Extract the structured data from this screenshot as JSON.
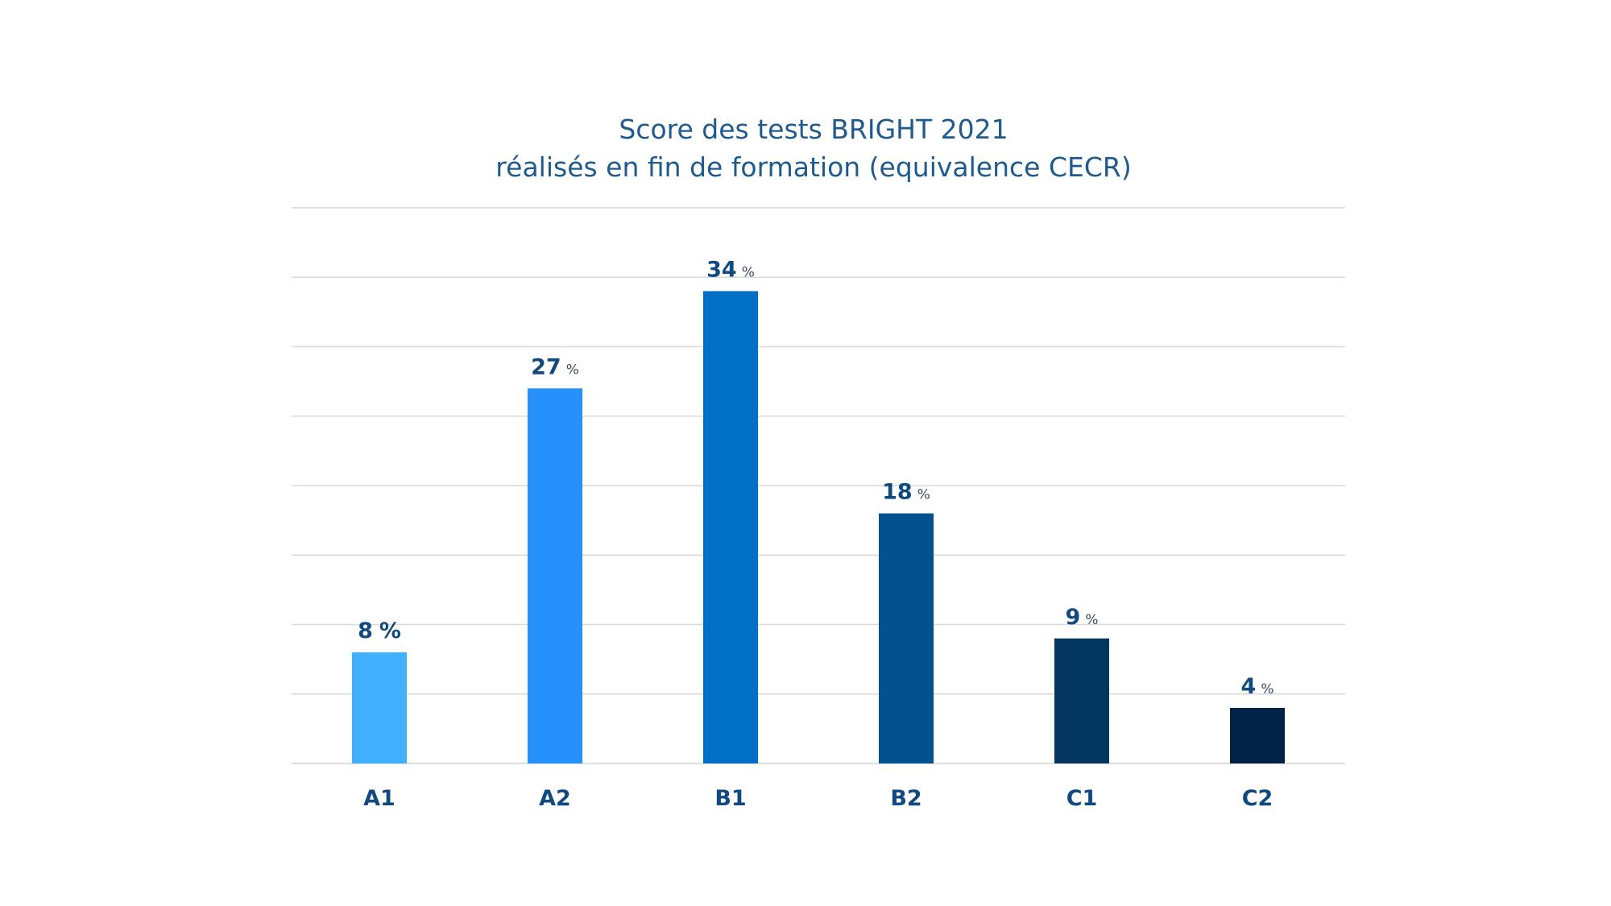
{
  "chart_data": {
    "type": "bar",
    "title": "Score des tests BRIGHT 2021",
    "subtitle": "réalisés en fin de formation (equivalence CECR)",
    "xlabel": "",
    "ylabel": "",
    "categories": [
      "A1",
      "A2",
      "B1",
      "B2",
      "C1",
      "C2"
    ],
    "values": [
      8,
      27,
      34,
      18,
      9,
      4
    ],
    "value_labels": [
      {
        "number": "8",
        "unit": "%"
      },
      {
        "number": "27",
        "unit": "%"
      },
      {
        "number": "34",
        "unit": "%"
      },
      {
        "number": "18",
        "unit": "%"
      },
      {
        "number": "9",
        "unit": "%"
      },
      {
        "number": "4",
        "unit": "%"
      }
    ],
    "colors": [
      "#41b0ff",
      "#2791fb",
      "#0070c6",
      "#03528f",
      "#02365f",
      "#002246"
    ],
    "ylim": [
      0,
      40
    ],
    "grid_step": 5,
    "grid": true,
    "legend": "none"
  }
}
